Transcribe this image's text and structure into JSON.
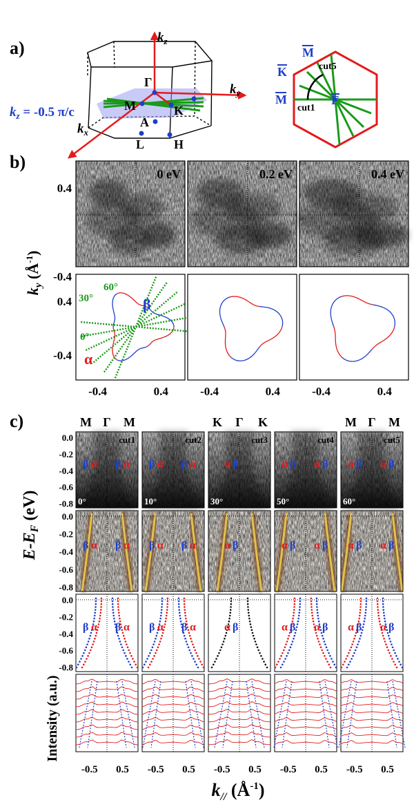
{
  "panel_a": {
    "panel_label": "a)",
    "bz_labels": {
      "kz": "k",
      "kz_sub": "z",
      "ky": "k",
      "ky_sub": "y",
      "kx": "k",
      "kx_sub": "x",
      "gamma": "Γ",
      "M": "M",
      "K": "K",
      "A": "A",
      "L": "L",
      "H": "H"
    },
    "plane_label_k": "k",
    "plane_label_sub": "z",
    "plane_label_val": " = -0.5 π/c",
    "hex_labels": {
      "m_top": "M",
      "k_left": "K",
      "m_left": "M",
      "gamma": "Γ",
      "cut1": "cut1",
      "cut5": "cut5"
    }
  },
  "panel_b": {
    "panel_label": "b)",
    "energies": [
      "0 eV",
      "0.2 eV",
      "0.4 eV"
    ],
    "ytick_top": "0.4",
    "ytick_bot": "-0.4",
    "xtick_left": "-0.4",
    "xtick_right": "0.4",
    "ylabel_k": "k",
    "ylabel_sub": "y",
    "ylabel_unit": " (Å",
    "ylabel_exp": "-1",
    "ylabel_close": ")",
    "angle_labels": [
      "30°",
      "60°",
      "0°"
    ],
    "alpha": "α",
    "beta": "β"
  },
  "panel_c": {
    "panel_label": "c)",
    "columns": [
      {
        "left": "M",
        "mid": "Γ",
        "right": "M",
        "cut": "cut1",
        "angle": "0°",
        "labels": [
          "β",
          "α",
          "β",
          "α"
        ],
        "mid_labels": [
          "β",
          "α",
          "β",
          "α"
        ],
        "fit_labels": [
          "β",
          "α",
          "β",
          "α"
        ]
      },
      {
        "left": "",
        "mid": "",
        "right": "",
        "cut": "cut2",
        "angle": "10°",
        "labels": [
          "β",
          "α",
          "β",
          "α"
        ],
        "mid_labels": [
          "β",
          "α",
          "β",
          "α"
        ],
        "fit_labels": [
          "β",
          "α",
          "β",
          "α"
        ]
      },
      {
        "left": "K",
        "mid": "Γ",
        "right": "K",
        "cut": "cut3",
        "angle": "30°",
        "labels": [
          "α",
          "β"
        ],
        "mid_labels": [
          "α",
          "β"
        ],
        "fit_labels": [
          "α",
          "β"
        ]
      },
      {
        "left": "",
        "mid": "",
        "right": "",
        "cut": "cut4",
        "angle": "50°",
        "labels": [
          "α",
          "β",
          "α",
          "β"
        ],
        "mid_labels": [
          "α",
          "β",
          "α",
          "β"
        ],
        "fit_labels": [
          "α",
          "β",
          "α",
          "β"
        ]
      },
      {
        "left": "M",
        "mid": "Γ",
        "right": "M",
        "cut": "cut5",
        "angle": "60°",
        "labels": [
          "α",
          "β",
          "α",
          "β"
        ],
        "mid_labels": [
          "α",
          "β",
          "α",
          "β"
        ],
        "fit_labels": [
          "α",
          "β",
          "α",
          "β"
        ]
      }
    ],
    "yticks": [
      "0.0",
      "-0.2",
      "-0.4",
      "-0.6",
      "-0.8"
    ],
    "ylabel": "E-E",
    "ylabel_sub": "F",
    "ylabel_unit": " (eV)",
    "intensity_label": "Intensity (a.u.)",
    "xticks": [
      "-0.5",
      "0.5"
    ],
    "xlabel_k": "k",
    "xlabel_sub": "//",
    "xlabel_unit": " (Å",
    "xlabel_exp": "-1",
    "xlabel_close": ")"
  },
  "colors": {
    "red": "#e41a1c",
    "blue": "#1f3fc8",
    "green": "#1a9a1a",
    "gridfill": "#9aa0f0"
  }
}
